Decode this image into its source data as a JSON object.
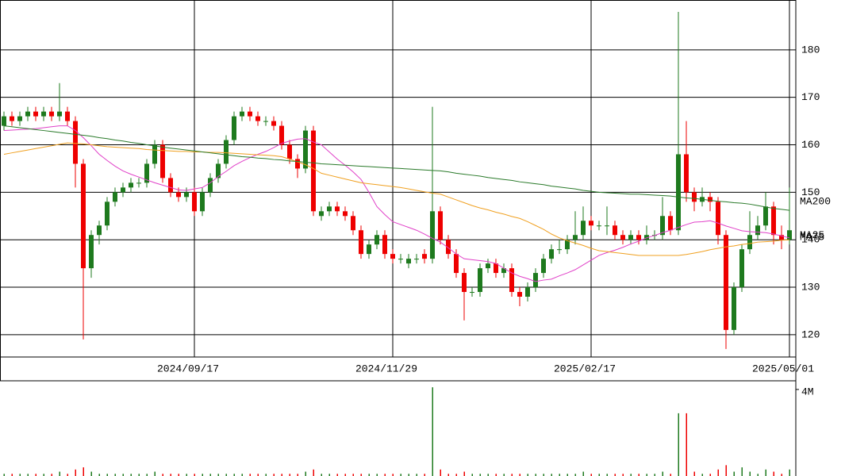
{
  "chart_data": {
    "type": "candlestick",
    "categories": [
      null,
      null,
      null,
      null,
      null,
      null,
      null,
      null,
      null,
      null,
      null,
      null,
      null,
      null,
      null,
      null,
      null,
      null,
      null,
      null,
      null,
      null,
      null,
      null,
      "2024/09/17",
      null,
      null,
      null,
      null,
      null,
      null,
      null,
      null,
      null,
      null,
      null,
      null,
      null,
      null,
      null,
      null,
      null,
      null,
      null,
      null,
      null,
      null,
      null,
      null,
      "2024/11/29",
      null,
      null,
      null,
      null,
      null,
      null,
      null,
      null,
      null,
      null,
      null,
      null,
      null,
      null,
      null,
      null,
      null,
      null,
      null,
      null,
      null,
      null,
      null,
      null,
      "2025/02/17",
      null,
      null,
      null,
      null,
      null,
      null,
      null,
      null,
      null,
      null,
      null,
      null,
      null,
      null,
      null,
      null,
      null,
      null,
      null,
      null,
      null,
      null,
      null,
      null,
      "2025/05/01"
    ],
    "open": [
      164,
      166,
      165,
      166,
      167,
      166,
      167,
      166,
      167,
      165,
      156,
      134,
      141,
      143,
      148,
      150,
      151,
      152,
      152,
      156,
      160,
      153,
      150,
      149,
      150,
      146,
      150,
      153,
      156,
      161,
      166,
      167,
      166,
      165,
      165,
      164,
      160,
      157,
      155,
      163,
      145,
      146,
      147,
      146,
      145,
      142,
      137,
      139,
      141,
      137,
      136,
      135,
      136,
      137,
      136,
      146,
      140,
      137,
      133,
      129,
      129,
      134,
      135,
      133,
      134,
      129,
      128,
      130,
      133,
      136,
      138,
      138,
      140,
      141,
      144,
      143,
      143,
      143,
      141,
      140,
      141,
      140,
      141,
      141,
      145,
      142,
      158,
      150,
      148,
      149,
      148,
      141,
      121,
      130,
      138,
      141,
      143,
      147,
      141,
      140
    ],
    "high": [
      167,
      167,
      167,
      168,
      168,
      168,
      168,
      173,
      168,
      166,
      157,
      142,
      144,
      149,
      151,
      152,
      153,
      153,
      157,
      161,
      161,
      154,
      151,
      151,
      151,
      151,
      154,
      157,
      162,
      167,
      168,
      168,
      167,
      166,
      166,
      165,
      161,
      158,
      164,
      164,
      147,
      148,
      148,
      147,
      146,
      143,
      140,
      142,
      142,
      138,
      137,
      137,
      137,
      138,
      168,
      147,
      141,
      138,
      134,
      130,
      135,
      136,
      136,
      135,
      135,
      130,
      131,
      134,
      137,
      139,
      140,
      141,
      146,
      147,
      145,
      144,
      147,
      144,
      142,
      142,
      142,
      143,
      142,
      149,
      146,
      188,
      165,
      151,
      151,
      150,
      149,
      142,
      131,
      139,
      146,
      145,
      150,
      148,
      143,
      151
    ],
    "low": [
      163,
      164,
      164,
      165,
      165,
      165,
      165,
      165,
      164,
      151,
      119,
      132,
      139,
      142,
      147,
      149,
      150,
      151,
      151,
      155,
      152,
      149,
      148,
      148,
      145,
      145,
      149,
      152,
      155,
      160,
      165,
      165,
      164,
      164,
      163,
      159,
      156,
      153,
      154,
      145,
      144,
      145,
      145,
      144,
      141,
      136,
      136,
      138,
      136,
      135,
      135,
      134,
      135,
      135,
      135,
      139,
      136,
      132,
      123,
      128,
      128,
      133,
      132,
      132,
      128,
      126,
      127,
      129,
      132,
      135,
      137,
      137,
      139,
      140,
      142,
      142,
      141,
      140,
      139,
      139,
      139,
      139,
      140,
      140,
      141,
      141,
      148,
      146,
      147,
      146,
      139,
      117,
      120,
      129,
      137,
      140,
      142,
      139,
      138,
      139
    ],
    "close": [
      166,
      165,
      166,
      167,
      166,
      167,
      166,
      167,
      165,
      156,
      134,
      141,
      143,
      148,
      150,
      151,
      152,
      152,
      156,
      160,
      153,
      150,
      149,
      150,
      146,
      150,
      153,
      156,
      161,
      166,
      167,
      166,
      165,
      165,
      164,
      160,
      157,
      155,
      163,
      146,
      146,
      147,
      146,
      145,
      142,
      137,
      139,
      141,
      137,
      136,
      136,
      136,
      136,
      136,
      146,
      140,
      137,
      133,
      129,
      129,
      134,
      135,
      133,
      134,
      129,
      128,
      130,
      133,
      136,
      138,
      138,
      140,
      141,
      144,
      143,
      143,
      143,
      141,
      140,
      141,
      140,
      141,
      141,
      145,
      142,
      158,
      150,
      148,
      149,
      148,
      141,
      121,
      130,
      138,
      141,
      143,
      147,
      141,
      140,
      142
    ],
    "up_color": "#1e7a1e",
    "down_color": "#ee0000",
    "ylim": [
      115.3,
      190.5
    ],
    "yticks": [
      120,
      130,
      140,
      150,
      160,
      170,
      180
    ],
    "grid": true,
    "series": [
      {
        "name": "MA25",
        "color": "#e040c8",
        "values": [
          163.0,
          163.1,
          163.2,
          163.3,
          163.4,
          163.6,
          163.8,
          164.0,
          164.0,
          163.0,
          161.5,
          159.8,
          158.0,
          156.7,
          155.5,
          154.5,
          153.8,
          153.2,
          152.6,
          152.0,
          151.5,
          151.0,
          150.5,
          150.4,
          150.7,
          151.0,
          152.0,
          153.3,
          154.4,
          155.6,
          156.5,
          157.3,
          158.0,
          158.6,
          159.4,
          160.3,
          160.8,
          161.2,
          161.3,
          160.6,
          160.0,
          158.5,
          157.0,
          155.7,
          154.3,
          152.7,
          150.0,
          147.0,
          145.3,
          143.8,
          143.2,
          142.6,
          142.0,
          141.2,
          140.3,
          139.5,
          138.3,
          137.0,
          136.0,
          135.8,
          135.6,
          135.4,
          135.0,
          134.0,
          133.0,
          132.3,
          131.8,
          131.2,
          131.5,
          131.7,
          132.4,
          133.0,
          133.7,
          134.7,
          135.7,
          136.7,
          137.3,
          137.8,
          138.4,
          139.1,
          139.7,
          140.4,
          140.9,
          141.5,
          142.0,
          142.6,
          143.2,
          143.7,
          143.8,
          144.0,
          143.5,
          142.9,
          142.4,
          141.9,
          141.7,
          141.6,
          141.5,
          141.2,
          140.8,
          140.4
        ]
      },
      {
        "name": "MA75",
        "color": "#f0a020",
        "values": [
          158.0,
          158.3,
          158.6,
          158.9,
          159.2,
          159.5,
          159.8,
          160.1,
          160.4,
          160.3,
          160.2,
          160.0,
          159.8,
          159.6,
          159.5,
          159.4,
          159.3,
          159.2,
          159.0,
          158.9,
          158.8,
          158.7,
          158.6,
          158.6,
          158.5,
          158.5,
          158.4,
          158.4,
          158.3,
          158.2,
          158.1,
          158.0,
          157.9,
          157.8,
          157.7,
          157.5,
          157.0,
          156.4,
          155.8,
          155.0,
          154.0,
          153.6,
          153.2,
          152.8,
          152.4,
          152.0,
          151.8,
          151.6,
          151.4,
          151.2,
          151.0,
          150.7,
          150.4,
          150.1,
          149.8,
          149.6,
          149.0,
          148.4,
          147.8,
          147.2,
          146.7,
          146.3,
          145.8,
          145.4,
          144.9,
          144.5,
          143.8,
          143.0,
          142.2,
          141.2,
          140.4,
          139.8,
          139.3,
          138.8,
          138.2,
          137.7,
          137.5,
          137.3,
          137.1,
          136.9,
          136.7,
          136.7,
          136.7,
          136.7,
          136.7,
          136.7,
          136.9,
          137.2,
          137.5,
          137.9,
          138.2,
          138.5,
          138.7,
          139.0,
          139.2,
          139.5,
          139.6,
          139.7,
          139.9,
          140.0
        ]
      },
      {
        "name": "MA200",
        "color": "#2a7a2a",
        "values": [
          164.0,
          163.8,
          163.6,
          163.4,
          163.2,
          163.0,
          162.8,
          162.6,
          162.4,
          162.2,
          162.0,
          161.8,
          161.5,
          161.3,
          161.0,
          160.8,
          160.5,
          160.3,
          160.0,
          159.8,
          159.5,
          159.3,
          159.1,
          158.9,
          158.7,
          158.5,
          158.3,
          158.1,
          157.9,
          157.7,
          157.5,
          157.4,
          157.2,
          157.1,
          156.9,
          156.8,
          156.6,
          156.5,
          156.3,
          156.2,
          156.0,
          155.9,
          155.8,
          155.7,
          155.6,
          155.5,
          155.4,
          155.3,
          155.2,
          155.1,
          155.0,
          154.9,
          154.8,
          154.7,
          154.6,
          154.5,
          154.3,
          154.0,
          153.8,
          153.6,
          153.4,
          153.1,
          152.9,
          152.7,
          152.5,
          152.2,
          152.0,
          151.8,
          151.6,
          151.3,
          151.1,
          150.9,
          150.7,
          150.4,
          150.2,
          150.0,
          149.9,
          149.8,
          149.7,
          149.6,
          149.6,
          149.5,
          149.4,
          149.3,
          149.2,
          149.0,
          148.8,
          148.7,
          148.5,
          148.3,
          148.1,
          148.0,
          147.8,
          147.7,
          147.5,
          147.2,
          146.9,
          146.6,
          146.4,
          146.2
        ]
      }
    ],
    "volume": {
      "values": [
        0.1,
        0.1,
        0.1,
        0.1,
        0.1,
        0.1,
        0.1,
        0.2,
        0.1,
        0.3,
        0.4,
        0.2,
        0.1,
        0.1,
        0.1,
        0.1,
        0.1,
        0.1,
        0.1,
        0.2,
        0.1,
        0.1,
        0.1,
        0.1,
        0.1,
        0.1,
        0.1,
        0.1,
        0.1,
        0.1,
        0.1,
        0.1,
        0.1,
        0.1,
        0.1,
        0.1,
        0.1,
        0.1,
        0.2,
        0.3,
        0.1,
        0.1,
        0.1,
        0.1,
        0.1,
        0.1,
        0.1,
        0.1,
        0.1,
        0.1,
        0.1,
        0.1,
        0.1,
        0.1,
        4.1,
        0.3,
        0.1,
        0.1,
        0.2,
        0.1,
        0.1,
        0.1,
        0.1,
        0.1,
        0.1,
        0.1,
        0.1,
        0.1,
        0.1,
        0.1,
        0.1,
        0.1,
        0.1,
        0.2,
        0.1,
        0.1,
        0.1,
        0.1,
        0.1,
        0.1,
        0.1,
        0.1,
        0.1,
        0.2,
        0.1,
        2.9,
        2.9,
        0.2,
        0.1,
        0.1,
        0.3,
        0.5,
        0.2,
        0.4,
        0.2,
        0.1,
        0.3,
        0.2,
        0.1,
        0.3
      ],
      "ylim": [
        0,
        4.4
      ],
      "yticks": [
        {
          "value": 4,
          "label": "4M"
        }
      ]
    }
  }
}
